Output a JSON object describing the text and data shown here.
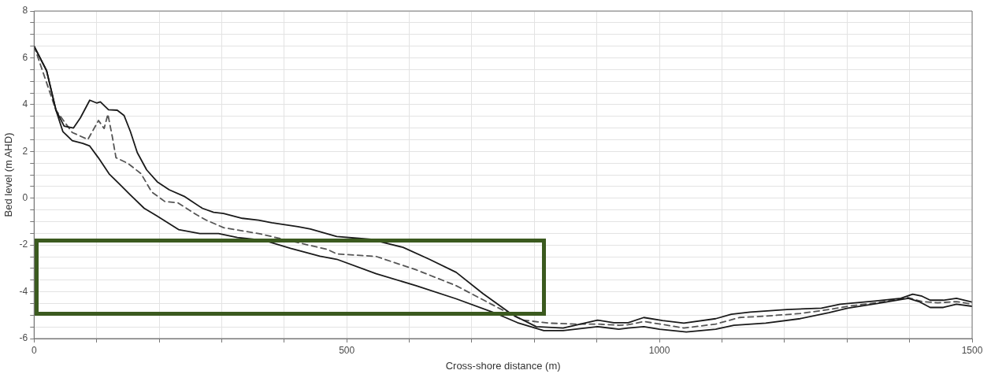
{
  "chart_data": {
    "type": "line",
    "xlabel": "Cross-shore distance (m)",
    "ylabel": "Bed level (m AHD)",
    "xlim": [
      0,
      1500
    ],
    "ylim": [
      -6,
      8
    ],
    "xticks": [
      0,
      {
        "value": 100,
        "label": null
      },
      {
        "value": 200,
        "label": null
      },
      {
        "value": 300,
        "label": null
      },
      {
        "value": 400,
        "label": null
      },
      500,
      {
        "value": 600,
        "label": null
      },
      {
        "value": 700,
        "label": null
      },
      {
        "value": 800,
        "label": null
      },
      {
        "value": 900,
        "label": null
      },
      1000,
      {
        "value": 1100,
        "label": null
      },
      {
        "value": 1200,
        "label": null
      },
      {
        "value": 1300,
        "label": null
      },
      {
        "value": 1400,
        "label": null
      },
      1500
    ],
    "yticks": [
      -6,
      {
        "value": -5.5,
        "label": null
      },
      {
        "value": -5,
        "label": null
      },
      {
        "value": -4.5,
        "label": null
      },
      -4,
      {
        "value": -3.5,
        "label": null
      },
      {
        "value": -3,
        "label": null
      },
      {
        "value": -2.5,
        "label": null
      },
      -2,
      {
        "value": -1.5,
        "label": null
      },
      {
        "value": -1,
        "label": null
      },
      {
        "value": -0.5,
        "label": null
      },
      0,
      {
        "value": 0.5,
        "label": null
      },
      {
        "value": 1,
        "label": null
      },
      {
        "value": 1.5,
        "label": null
      },
      2,
      {
        "value": 2.5,
        "label": null
      },
      {
        "value": 3,
        "label": null
      },
      {
        "value": 3.5,
        "label": null
      },
      4,
      {
        "value": 4.5,
        "label": null
      },
      {
        "value": 5,
        "label": null
      },
      {
        "value": 5.5,
        "label": null
      },
      6,
      {
        "value": 6.5,
        "label": null
      },
      {
        "value": 7,
        "label": null
      },
      {
        "value": 7.5,
        "label": null
      },
      8
    ],
    "grid": true,
    "marker": "none",
    "series": [
      {
        "color": "#1a1a1a",
        "line_style": "solid",
        "x": [
          0,
          20,
          35,
          48,
          63,
          74,
          89,
          100,
          106,
          119,
          133,
          144,
          154,
          165,
          180,
          197,
          216,
          240,
          269,
          287,
          303,
          333,
          359,
          380,
          422,
          442,
          484,
          539,
          590,
          632,
          675,
          718,
          765,
          803,
          846,
          901,
          927,
          950,
          975,
          1005,
          1039,
          1090,
          1115,
          1145,
          1204,
          1259,
          1289,
          1344,
          1386,
          1405,
          1420,
          1433,
          1454,
          1475,
          1500
        ],
        "values": [
          6.5,
          5.45,
          3.76,
          3.08,
          3.0,
          3.43,
          4.19,
          4.07,
          4.12,
          3.78,
          3.76,
          3.53,
          2.85,
          1.95,
          1.21,
          0.7,
          0.36,
          0.08,
          -0.43,
          -0.6,
          -0.65,
          -0.86,
          -0.94,
          -1.05,
          -1.22,
          -1.32,
          -1.64,
          -1.76,
          -2.1,
          -2.61,
          -3.17,
          -4.08,
          -4.98,
          -5.49,
          -5.55,
          -5.21,
          -5.32,
          -5.32,
          -5.1,
          -5.23,
          -5.34,
          -5.15,
          -4.96,
          -4.87,
          -4.76,
          -4.7,
          -4.53,
          -4.4,
          -4.28,
          -4.1,
          -4.19,
          -4.36,
          -4.36,
          -4.28,
          -4.44
        ]
      },
      {
        "color": "#1a1a1a",
        "line_style": "solid",
        "x": [
          0,
          20,
          35,
          46,
          61,
          78,
          89,
          103,
          120,
          137,
          154,
          176,
          197,
          231,
          265,
          295,
          325,
          367,
          410,
          457,
          484,
          547,
          611,
          675,
          739,
          773,
          815,
          846,
          901,
          935,
          950,
          975,
          1000,
          1043,
          1090,
          1119,
          1170,
          1225,
          1271,
          1301,
          1347,
          1398,
          1415,
          1433,
          1454,
          1475,
          1500
        ],
        "values": [
          6.5,
          5.45,
          3.76,
          2.85,
          2.46,
          2.34,
          2.23,
          1.72,
          1.04,
          0.59,
          0.14,
          -0.43,
          -0.77,
          -1.34,
          -1.51,
          -1.51,
          -1.68,
          -1.8,
          -2.14,
          -2.48,
          -2.61,
          -3.23,
          -3.74,
          -4.3,
          -4.93,
          -5.32,
          -5.66,
          -5.66,
          -5.49,
          -5.6,
          -5.55,
          -5.49,
          -5.6,
          -5.72,
          -5.6,
          -5.43,
          -5.34,
          -5.15,
          -4.89,
          -4.7,
          -4.51,
          -4.28,
          -4.42,
          -4.67,
          -4.67,
          -4.53,
          -4.62
        ]
      },
      {
        "color": "#555555",
        "line_style": "dashed",
        "x": [
          0,
          35,
          61,
          86,
          103,
          112,
          118,
          125,
          131,
          150,
          171,
          188,
          209,
          230,
          260,
          274,
          303,
          359,
          422,
          469,
          484,
          547,
          611,
          675,
          739,
          781,
          824,
          867,
          901,
          935,
          950,
          975,
          1013,
          1039,
          1090,
          1128,
          1170,
          1225,
          1271,
          1301,
          1347,
          1398,
          1420,
          1445,
          1475,
          1500
        ],
        "values": [
          6.5,
          3.76,
          2.81,
          2.51,
          3.32,
          2.98,
          3.59,
          2.64,
          1.73,
          1.49,
          1.05,
          0.27,
          -0.14,
          -0.2,
          -0.71,
          -0.92,
          -1.26,
          -1.51,
          -1.9,
          -2.19,
          -2.38,
          -2.49,
          -3.06,
          -3.74,
          -4.64,
          -5.21,
          -5.34,
          -5.38,
          -5.38,
          -5.43,
          -5.41,
          -5.27,
          -5.43,
          -5.55,
          -5.38,
          -5.1,
          -5.04,
          -4.93,
          -4.76,
          -4.62,
          -4.47,
          -4.25,
          -4.42,
          -4.47,
          -4.42,
          -4.53
        ]
      }
    ]
  }
}
